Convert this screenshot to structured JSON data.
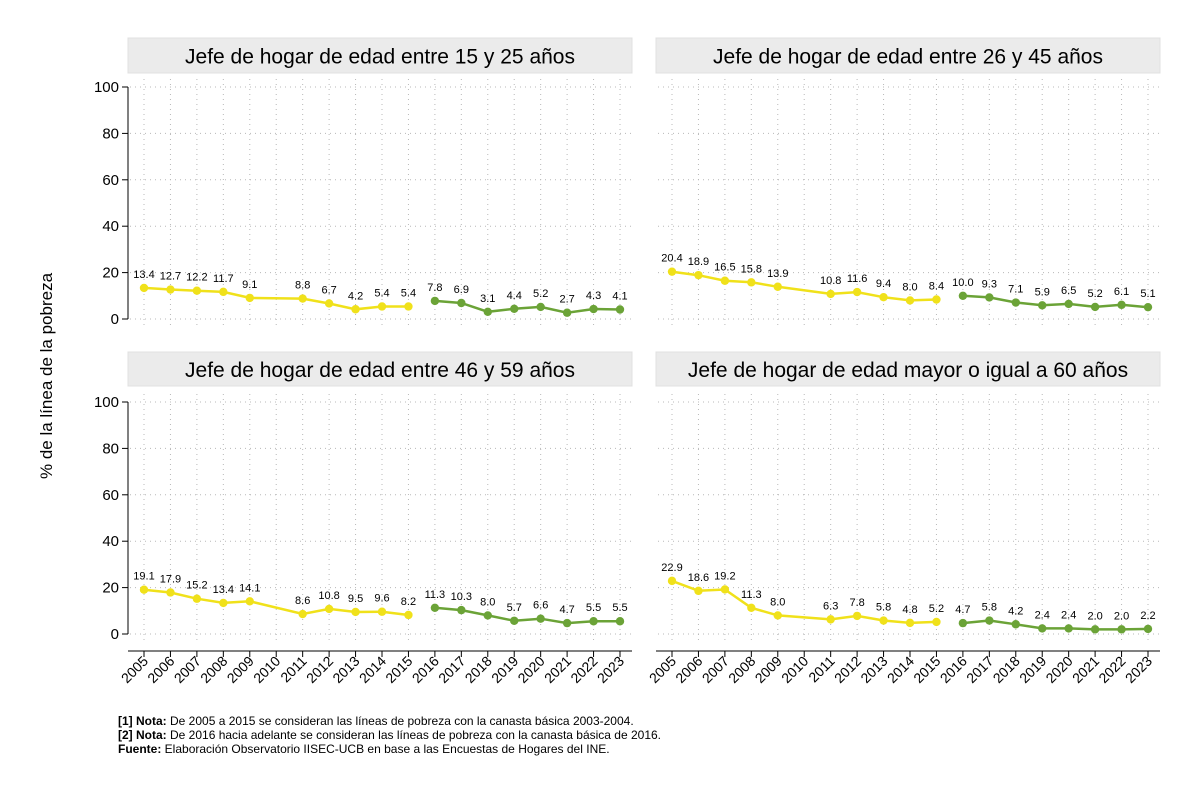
{
  "chart_data": {
    "type": "line",
    "ylabel": "% de la línea de la pobreza",
    "ylim": [
      0,
      100
    ],
    "yticks": [
      0,
      20,
      40,
      60,
      80,
      100
    ],
    "x_categories": [
      "2005",
      "2006",
      "2007",
      "2008",
      "2009",
      "2010",
      "2011",
      "2012",
      "2013",
      "2014",
      "2015",
      "2016",
      "2017",
      "2018",
      "2019",
      "2020",
      "2021",
      "2022",
      "2023"
    ],
    "colors": {
      "series_2003": "#f0e11a",
      "series_2016": "#6ba337",
      "panel_header_bg": "#ebebeb"
    },
    "panels": [
      {
        "title": "Jefe de hogar de edad entre 15 y 25 años",
        "series": [
          {
            "name": "Canasta básica 2003-2004",
            "points": [
              {
                "x": "2005",
                "y": 13.4,
                "label": "13.4"
              },
              {
                "x": "2006",
                "y": 12.7,
                "label": "12.7"
              },
              {
                "x": "2007",
                "y": 12.2,
                "label": "12.2"
              },
              {
                "x": "2008",
                "y": 11.7,
                "label": "11.7"
              },
              {
                "x": "2009",
                "y": 9.1,
                "label": "9.1"
              },
              {
                "x": "2011",
                "y": 8.8,
                "label": "8.8"
              },
              {
                "x": "2012",
                "y": 6.7,
                "label": "6.7"
              },
              {
                "x": "2013",
                "y": 4.2,
                "label": "4.2"
              },
              {
                "x": "2014",
                "y": 5.4,
                "label": "5.4"
              },
              {
                "x": "2015",
                "y": 5.4,
                "label": "5.4"
              }
            ]
          },
          {
            "name": "Canasta básica 2016",
            "points": [
              {
                "x": "2016",
                "y": 7.8,
                "label": "7.8"
              },
              {
                "x": "2017",
                "y": 6.9,
                "label": "6.9"
              },
              {
                "x": "2018",
                "y": 3.1,
                "label": "3.1"
              },
              {
                "x": "2019",
                "y": 4.4,
                "label": "4.4"
              },
              {
                "x": "2020",
                "y": 5.2,
                "label": "5.2"
              },
              {
                "x": "2021",
                "y": 2.7,
                "label": "2.7"
              },
              {
                "x": "2022",
                "y": 4.3,
                "label": "4.3"
              },
              {
                "x": "2023",
                "y": 4.1,
                "label": "4.1"
              }
            ]
          }
        ]
      },
      {
        "title": "Jefe de hogar de edad entre 26 y 45 años",
        "series": [
          {
            "name": "Canasta básica 2003-2004",
            "points": [
              {
                "x": "2005",
                "y": 20.4,
                "label": "20.4"
              },
              {
                "x": "2006",
                "y": 18.9,
                "label": "18.9"
              },
              {
                "x": "2007",
                "y": 16.5,
                "label": "16.5"
              },
              {
                "x": "2008",
                "y": 15.8,
                "label": "15.8"
              },
              {
                "x": "2009",
                "y": 13.9,
                "label": "13.9"
              },
              {
                "x": "2011",
                "y": 10.8,
                "label": "10.8"
              },
              {
                "x": "2012",
                "y": 11.6,
                "label": "11.6"
              },
              {
                "x": "2013",
                "y": 9.4,
                "label": "9.4"
              },
              {
                "x": "2014",
                "y": 8.0,
                "label": "8.0"
              },
              {
                "x": "2015",
                "y": 8.4,
                "label": "8.4"
              }
            ]
          },
          {
            "name": "Canasta básica 2016",
            "points": [
              {
                "x": "2016",
                "y": 10.0,
                "label": "10.0"
              },
              {
                "x": "2017",
                "y": 9.3,
                "label": "9.3"
              },
              {
                "x": "2018",
                "y": 7.1,
                "label": "7.1"
              },
              {
                "x": "2019",
                "y": 5.9,
                "label": "5.9"
              },
              {
                "x": "2020",
                "y": 6.5,
                "label": "6.5"
              },
              {
                "x": "2021",
                "y": 5.2,
                "label": "5.2"
              },
              {
                "x": "2022",
                "y": 6.1,
                "label": "6.1"
              },
              {
                "x": "2023",
                "y": 5.1,
                "label": "5.1"
              }
            ]
          }
        ]
      },
      {
        "title": "Jefe de hogar de edad entre 46 y 59 años",
        "series": [
          {
            "name": "Canasta básica 2003-2004",
            "points": [
              {
                "x": "2005",
                "y": 19.1,
                "label": "19.1"
              },
              {
                "x": "2006",
                "y": 17.9,
                "label": "17.9"
              },
              {
                "x": "2007",
                "y": 15.2,
                "label": "15.2"
              },
              {
                "x": "2008",
                "y": 13.4,
                "label": "13.4"
              },
              {
                "x": "2009",
                "y": 14.1,
                "label": "14.1"
              },
              {
                "x": "2011",
                "y": 8.6,
                "label": "8.6"
              },
              {
                "x": "2012",
                "y": 10.8,
                "label": "10.8"
              },
              {
                "x": "2013",
                "y": 9.5,
                "label": "9.5"
              },
              {
                "x": "2014",
                "y": 9.6,
                "label": "9.6"
              },
              {
                "x": "2015",
                "y": 8.2,
                "label": "8.2"
              }
            ]
          },
          {
            "name": "Canasta básica 2016",
            "points": [
              {
                "x": "2016",
                "y": 11.3,
                "label": "11.3"
              },
              {
                "x": "2017",
                "y": 10.3,
                "label": "10.3"
              },
              {
                "x": "2018",
                "y": 8.0,
                "label": "8.0"
              },
              {
                "x": "2019",
                "y": 5.7,
                "label": "5.7"
              },
              {
                "x": "2020",
                "y": 6.6,
                "label": "6.6"
              },
              {
                "x": "2021",
                "y": 4.7,
                "label": "4.7"
              },
              {
                "x": "2022",
                "y": 5.5,
                "label": "5.5"
              },
              {
                "x": "2023",
                "y": 5.5,
                "label": "5.5"
              }
            ]
          }
        ]
      },
      {
        "title": "Jefe de hogar de edad mayor o igual a 60 años",
        "series": [
          {
            "name": "Canasta básica 2003-2004",
            "points": [
              {
                "x": "2005",
                "y": 22.9,
                "label": "22.9"
              },
              {
                "x": "2006",
                "y": 18.6,
                "label": "18.6"
              },
              {
                "x": "2007",
                "y": 19.2,
                "label": "19.2"
              },
              {
                "x": "2008",
                "y": 11.3,
                "label": "11.3"
              },
              {
                "x": "2009",
                "y": 8.0,
                "label": "8.0"
              },
              {
                "x": "2011",
                "y": 6.3,
                "label": "6.3"
              },
              {
                "x": "2012",
                "y": 7.8,
                "label": "7.8"
              },
              {
                "x": "2013",
                "y": 5.8,
                "label": "5.8"
              },
              {
                "x": "2014",
                "y": 4.8,
                "label": "4.8"
              },
              {
                "x": "2015",
                "y": 5.2,
                "label": "5.2"
              }
            ]
          },
          {
            "name": "Canasta básica 2016",
            "points": [
              {
                "x": "2016",
                "y": 4.7,
                "label": "4.7"
              },
              {
                "x": "2017",
                "y": 5.8,
                "label": "5.8"
              },
              {
                "x": "2018",
                "y": 4.2,
                "label": "4.2"
              },
              {
                "x": "2019",
                "y": 2.4,
                "label": "2.4"
              },
              {
                "x": "2020",
                "y": 2.4,
                "label": "2.4"
              },
              {
                "x": "2021",
                "y": 2.0,
                "label": "2.0"
              },
              {
                "x": "2022",
                "y": 2.0,
                "label": "2.0"
              },
              {
                "x": "2023",
                "y": 2.2,
                "label": "2.2"
              }
            ]
          }
        ]
      }
    ]
  },
  "notes": {
    "note1_label": "[1] Nota:",
    "note1_text": " De 2005 a 2015 se consideran las líneas de pobreza con la canasta básica 2003-2004.",
    "note2_label": "[2] Nota:",
    "note2_text": " De 2016 hacia adelante se consideran las líneas de pobreza con la canasta básica de 2016.",
    "source_label": "Fuente:",
    "source_text": " Elaboración Observatorio IISEC-UCB en base a las Encuestas de Hogares del INE."
  }
}
